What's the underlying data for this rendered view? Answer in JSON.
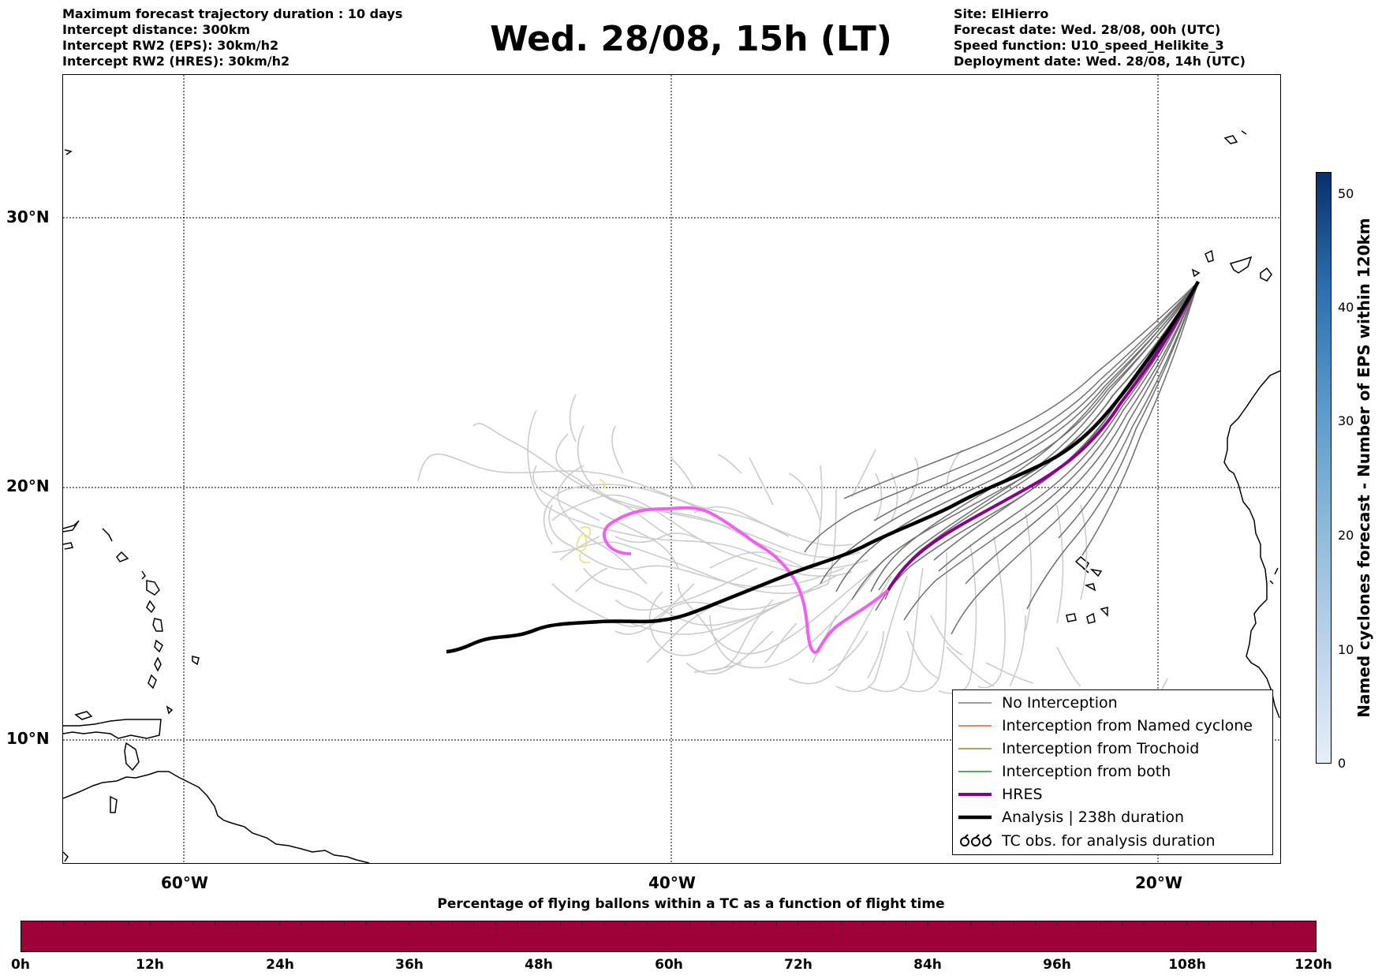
{
  "header": {
    "title": "Wed. 28/08, 15h (LT)",
    "left_lines": [
      "Maximum forecast trajectory duration : 10 days",
      "Intercept distance: 300km",
      "Intercept RW2 (EPS):  30km/h2",
      "Intercept RW2 (HRES): 30km/h2"
    ],
    "right_lines": [
      "Site: ElHierro",
      "Forecast date: Wed. 28/08, 00h (UTC)",
      "Speed function: U10_speed_Helikite_3",
      "Deployment date: Wed. 28/08, 14h (UTC)"
    ]
  },
  "map": {
    "lat_labels": [
      "30°N",
      "20°N",
      "10°N"
    ],
    "lon_labels": [
      "60°W",
      "40°W",
      "20°W"
    ]
  },
  "legend": {
    "items": [
      {
        "label": "No Interception",
        "color": "#7f7f7f"
      },
      {
        "label": "Interception from Named cyclone",
        "color": "#e8602c"
      },
      {
        "label": "Interception from Trochoid",
        "color": "#8a8a2a"
      },
      {
        "label": "Interception from both",
        "color": "#2a8a2a"
      },
      {
        "label": "HRES",
        "color": "#8b008b"
      },
      {
        "label": "Analysis | 238h duration",
        "color": "#000000"
      },
      {
        "label": "TC obs. for analysis duration",
        "color": "#000000"
      }
    ]
  },
  "colorbar": {
    "label": "Named cyclones forecast - Number of EPS within 120km",
    "ticks": [
      "0",
      "10",
      "20",
      "30",
      "40",
      "50"
    ]
  },
  "percentage_bar": {
    "title": "Percentage of flying ballons within a TC as a function of flight time",
    "color": "#9e003a",
    "ticks": [
      "0h",
      "12h",
      "24h",
      "36h",
      "48h",
      "60h",
      "72h",
      "84h",
      "96h",
      "108h",
      "120h"
    ]
  }
}
